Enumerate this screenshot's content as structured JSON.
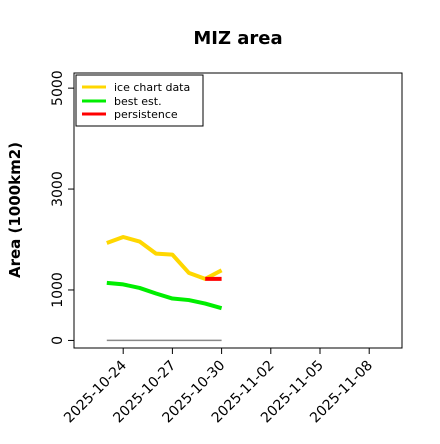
{
  "chart_data": {
    "type": "line",
    "title": "MIZ area",
    "xlabel": "",
    "ylabel": "Area (1000km2)",
    "x_ticks": [
      "2025-10-24",
      "2025-10-27",
      "2025-10-30",
      "2025-11-02",
      "2025-11-05",
      "2025-11-08"
    ],
    "y_ticks": [
      "0",
      "1000",
      "3000",
      "5000"
    ],
    "y_ticks_values": [
      0,
      1000,
      3000,
      5000
    ],
    "xlim": [
      "2025-10-21",
      "2025-11-10"
    ],
    "ylim": [
      -150,
      5300
    ],
    "grid": false,
    "legend_position": "top-left",
    "series": [
      {
        "name": "ice chart data",
        "color": "#FFD700",
        "points": [
          [
            "2025-10-23",
            1930
          ],
          [
            "2025-10-24",
            2050
          ],
          [
            "2025-10-25",
            1960
          ],
          [
            "2025-10-26",
            1720
          ],
          [
            "2025-10-27",
            1700
          ],
          [
            "2025-10-28",
            1340
          ],
          [
            "2025-10-29",
            1220
          ],
          [
            "2025-10-30",
            1390
          ]
        ]
      },
      {
        "name": "best est.",
        "color": "#00EE00",
        "points": [
          [
            "2025-10-23",
            1140
          ],
          [
            "2025-10-24",
            1110
          ],
          [
            "2025-10-25",
            1040
          ],
          [
            "2025-10-26",
            930
          ],
          [
            "2025-10-27",
            830
          ],
          [
            "2025-10-28",
            800
          ],
          [
            "2025-10-29",
            730
          ],
          [
            "2025-10-30",
            640
          ]
        ]
      },
      {
        "name": "persistence",
        "color": "#FF0000",
        "points": [
          [
            "2025-10-29",
            1220
          ],
          [
            "2025-10-30",
            1220
          ]
        ]
      }
    ],
    "baseline": {
      "color": "#888888",
      "points": [
        [
          "2025-10-23",
          0
        ],
        [
          "2025-10-30",
          0
        ]
      ]
    }
  }
}
